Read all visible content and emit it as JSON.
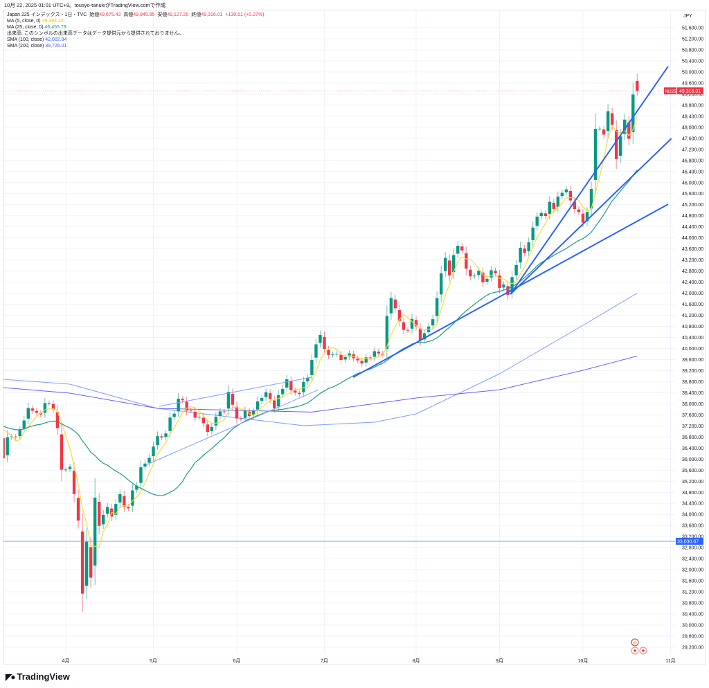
{
  "caption": "10月 22, 2025 01:01 UTC+9。tousyo-tanukiがTradingView.comで作成",
  "legend": {
    "symbol": "Japan 225 インデックス・1日・TVC",
    "open_label": "始値",
    "open": "49,675.43",
    "high_label": "高値",
    "high": "49,945.95",
    "low_label": "安値",
    "low": "49,127.20",
    "close_label": "終値",
    "close": "49,316.01",
    "change": "+130.51 (+0.27%)",
    "ma5_label": "MA (5, close, 0)",
    "ma5_value": "48,394.22",
    "ma25_label": "MA (25, close, 0)",
    "ma25_value": "46,455.79",
    "volume_note": "出来高: このシンボルの出来高データはデータ提供元から提供されておりません。",
    "sma100_label": "SMA (100, close)",
    "sma100_value": "42,002.84",
    "sma200_label": "SMA (200, close)",
    "sma200_value": "39,726.01"
  },
  "logo_text": "TradingView",
  "chart_data": {
    "type": "candlestick",
    "currency": "JPY",
    "ylim": [
      29200,
      51600
    ],
    "ytick_step": 400,
    "x_ticks": [
      {
        "index": 20,
        "label": "4月"
      },
      {
        "index": 41,
        "label": "5月"
      },
      {
        "index": 61,
        "label": "6月"
      },
      {
        "index": 82,
        "label": "7月"
      },
      {
        "index": 104,
        "label": "8月"
      },
      {
        "index": 124,
        "label": "9月"
      },
      {
        "index": 144,
        "label": "10月"
      },
      {
        "index": 165,
        "label": "11月"
      }
    ],
    "closes": [
      37785,
      37331,
      37418,
      37704,
      36887,
      36028,
      36793,
      36819,
      36790,
      37053,
      37396,
      37845,
      37751,
      37677,
      37608,
      38027,
      38027,
      37799,
      37120,
      35617,
      35624,
      35725,
      34736,
      33780,
      31136,
      33012,
      31714,
      34609,
      33585,
      33982,
      34267,
      33920,
      34377,
      34730,
      34280,
      34220,
      34868,
      35039,
      35705,
      35839,
      36045,
      36452,
      36830,
      36780,
      36928,
      37503,
      37644,
      38183,
      38128,
      37755,
      37753,
      37498,
      37529,
      37298,
      36985,
      37160,
      37531,
      37724,
      37722,
      38432,
      37965,
      37470,
      37446,
      37747,
      37554,
      37741,
      38088,
      38211,
      38421,
      38173,
      37834,
      38311,
      38536,
      38885,
      38488,
      38403,
      38354,
      38790,
      38942,
      39584,
      40150,
      40487,
      39986,
      39762,
      39785,
      39810,
      39587,
      39688,
      39821,
      39646,
      39570,
      39459,
      39678,
      39663,
      39901,
      39819,
      39774,
      41171,
      41826,
      41456,
      40998,
      40674,
      40654,
      41069,
      40800,
      40290,
      40549,
      40794,
      41059,
      41820,
      42718,
      43274,
      42649,
      43378,
      43714,
      43546,
      42888,
      42610,
      42633,
      42807,
      42394,
      42520,
      42828,
      42718,
      42188,
      42310,
      41938,
      42580,
      43018,
      43643,
      43459,
      43837,
      44372,
      44768,
      44902,
      44790,
      45303,
      45045,
      45493,
      45630,
      45754,
      45354,
      45043,
      44932,
      44550,
      44936,
      45769,
      47944,
      47950,
      47734,
      48580,
      48088,
      46847,
      47672,
      48277,
      47582,
      49185,
      49316.01
    ],
    "last_ohlc": {
      "open": 49675.43,
      "high": 49945.95,
      "low": 49127.2,
      "close": 49316.01
    },
    "sma100": [
      [
        5,
        38885
      ],
      [
        21,
        38710
      ],
      [
        42,
        37834
      ],
      [
        77,
        37208
      ],
      [
        94,
        37333
      ],
      [
        104,
        37634
      ],
      [
        124,
        39085
      ],
      [
        144,
        40837
      ],
      [
        157,
        42002.84
      ]
    ],
    "sma200": [
      [
        5,
        38585
      ],
      [
        21,
        38384
      ],
      [
        42,
        37834
      ],
      [
        62,
        37760
      ],
      [
        79,
        37700
      ],
      [
        104,
        38209
      ],
      [
        124,
        38509
      ],
      [
        144,
        39210
      ],
      [
        157,
        39726.01
      ]
    ],
    "trend_lines": [
      {
        "from": [
          88.9,
          38960
        ],
        "to": [
          164.4,
          45216
        ],
        "weight": "thick"
      },
      {
        "from": [
          126.6,
          41963
        ],
        "to": [
          165.2,
          47593
        ],
        "weight": "thick"
      },
      {
        "from": [
          126.6,
          41963
        ],
        "to": [
          164.4,
          50196
        ],
        "weight": "thick"
      },
      {
        "from": [
          42.4,
          37909
        ],
        "to": [
          78.9,
          38960
        ],
        "weight": "thin"
      },
      {
        "from": [
          39.1,
          35782
        ],
        "to": [
          80.6,
          38509
        ],
        "weight": "thin"
      }
    ],
    "horizontal_line": {
      "value": 33030.67,
      "label": "33,030.67"
    },
    "price_tag": {
      "symbol": "NI225",
      "value": "49,316.01"
    },
    "colors": {
      "up": "#089981",
      "down": "#f23645",
      "ma5": "#f5dd3a",
      "ma25": "#1e9a82",
      "sma100": "#7f9dff",
      "sma200": "#6a5cff",
      "trend": "#2962ff"
    }
  }
}
